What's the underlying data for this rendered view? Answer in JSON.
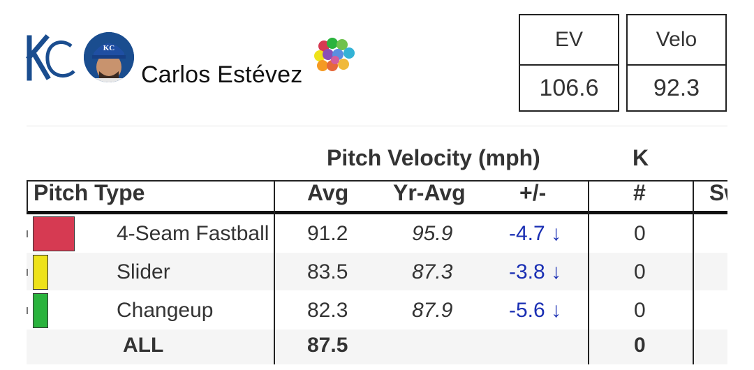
{
  "player": {
    "name": "Carlos Estévez",
    "team_logo": "kc-royals-logo",
    "cap_letters": "KC"
  },
  "stat_boxes": [
    {
      "label": "EV",
      "value": "106.6"
    },
    {
      "label": "Velo",
      "value": "92.3"
    }
  ],
  "table": {
    "group_headers": {
      "velocity": "Pitch Velocity (mph)",
      "k": "K"
    },
    "columns": {
      "pitch_type": "Pitch Type",
      "avg": "Avg",
      "yr_avg": "Yr-Avg",
      "diff": "+/-",
      "k_count": "#",
      "sw": "Sw"
    },
    "rows": [
      {
        "pitch": "4-Seam Fastball",
        "color": "#d63a52",
        "avg": "91.2",
        "yr_avg": "95.9",
        "diff": "-4.7 ↓",
        "k": "0"
      },
      {
        "pitch": "Slider",
        "color": "#eee21a",
        "avg": "83.5",
        "yr_avg": "87.3",
        "diff": "-3.8 ↓",
        "k": "0"
      },
      {
        "pitch": "Changeup",
        "color": "#2ab33d",
        "avg": "82.3",
        "yr_avg": "87.9",
        "diff": "-5.6 ↓",
        "k": "0"
      }
    ],
    "total": {
      "label": "ALL",
      "avg": "87.5",
      "k": "0"
    }
  },
  "colors": {
    "accent_down": "#1a2fb3",
    "row_alt": "#f5f5f5"
  }
}
